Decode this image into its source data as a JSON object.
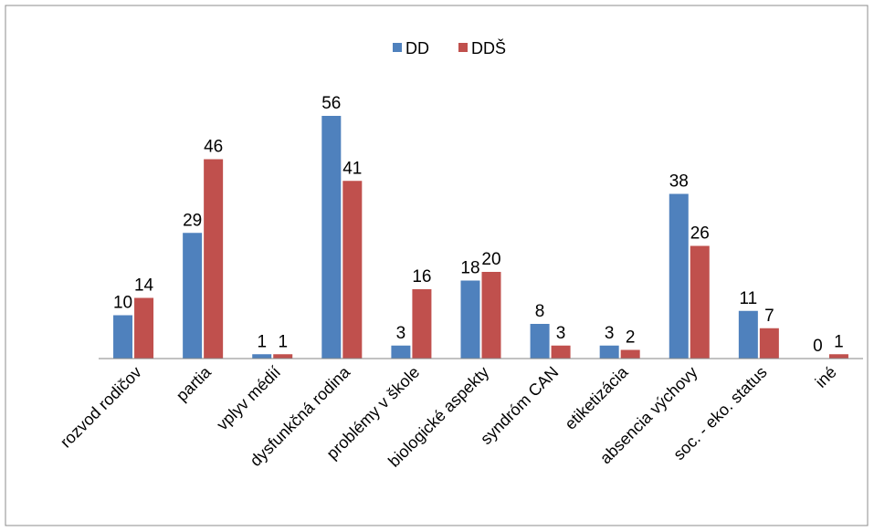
{
  "chart_data": {
    "type": "bar",
    "title": "",
    "xlabel": "",
    "ylabel": "",
    "ylim": [
      0,
      56
    ],
    "grid": false,
    "legend_position": "top-center",
    "categories": [
      "rozvod rodičov",
      "partia",
      "vplyv médií",
      "dysfunkčná rodina",
      "problémy v škole",
      "biologické aspekty",
      "syndróm CAN",
      "etiketizácia",
      "absencia výchovy",
      "soc. - eko. status",
      "iné"
    ],
    "series": [
      {
        "name": "DD",
        "color": "#4F81BD",
        "values": [
          10,
          29,
          1,
          56,
          3,
          18,
          8,
          3,
          38,
          11,
          0
        ]
      },
      {
        "name": "DDŠ",
        "color": "#C0504D",
        "values": [
          14,
          46,
          1,
          41,
          16,
          20,
          3,
          2,
          26,
          7,
          1
        ]
      }
    ]
  }
}
